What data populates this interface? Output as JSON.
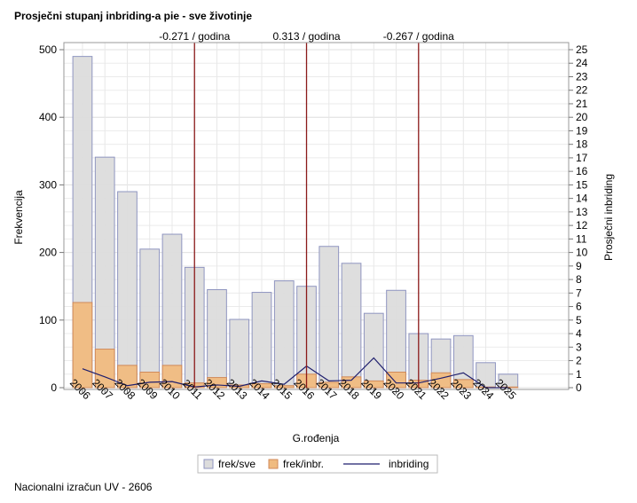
{
  "title": "Prosječni stupanj inbriding-a pie - sve životinje",
  "footnote": "Nacionalni izračun UV - 2606",
  "chart_data": {
    "type": "bar",
    "xlabel": "G.rođenja",
    "ylabel": "Frekvencija",
    "y2label": "Prosječni inbriding",
    "categories": [
      2006,
      2007,
      2008,
      2009,
      2010,
      2011,
      2012,
      2013,
      2014,
      2015,
      2016,
      2017,
      2018,
      2019,
      2020,
      2021,
      2022,
      2023,
      2024,
      2025
    ],
    "xlim": [
      2005.17,
      2027.7
    ],
    "ylim": [
      0,
      500
    ],
    "yticks": [
      0,
      100,
      200,
      300,
      400,
      500
    ],
    "y2lim": [
      0,
      25
    ],
    "y2ticks": [
      0,
      1,
      2,
      3,
      4,
      5,
      6,
      7,
      8,
      9,
      10,
      11,
      12,
      13,
      14,
      15,
      16,
      17,
      18,
      19,
      20,
      21,
      22,
      23,
      24,
      25
    ],
    "grid": true,
    "legend_placement": "bottom",
    "series": [
      {
        "name": "frek/sve",
        "type": "bar",
        "color": "#dcdcdc",
        "stroke": "#8f95c0",
        "values": [
          490,
          341,
          290,
          205,
          227,
          178,
          145,
          101,
          141,
          158,
          150,
          209,
          184,
          110,
          144,
          80,
          72,
          77,
          37,
          20
        ]
      },
      {
        "name": "frek/inbr.",
        "type": "bar",
        "color": "#f0bb80",
        "stroke": "#d08a5a",
        "values": [
          126,
          57,
          33,
          23,
          33,
          7,
          15,
          4,
          6,
          3,
          20,
          8,
          16,
          10,
          23,
          11,
          22,
          12,
          1,
          1
        ]
      },
      {
        "name": "inbriding",
        "type": "line",
        "axis": "y2",
        "color": "#1f1f6e",
        "values": [
          1.4,
          0.8,
          0.15,
          0.4,
          0.45,
          0.05,
          0.2,
          0.1,
          0.5,
          0.25,
          1.6,
          0.5,
          0.55,
          2.2,
          0.35,
          0.35,
          0.7,
          1.1,
          0,
          0
        ]
      }
    ],
    "reference_lines": [
      {
        "x": 2011,
        "label": "-0.271 / godina",
        "color": "#8b1a1a"
      },
      {
        "x": 2016,
        "label": "0.313 / godina",
        "color": "#8b1a1a"
      },
      {
        "x": 2021,
        "label": "-0.267 / godina",
        "color": "#8b1a1a"
      }
    ]
  }
}
